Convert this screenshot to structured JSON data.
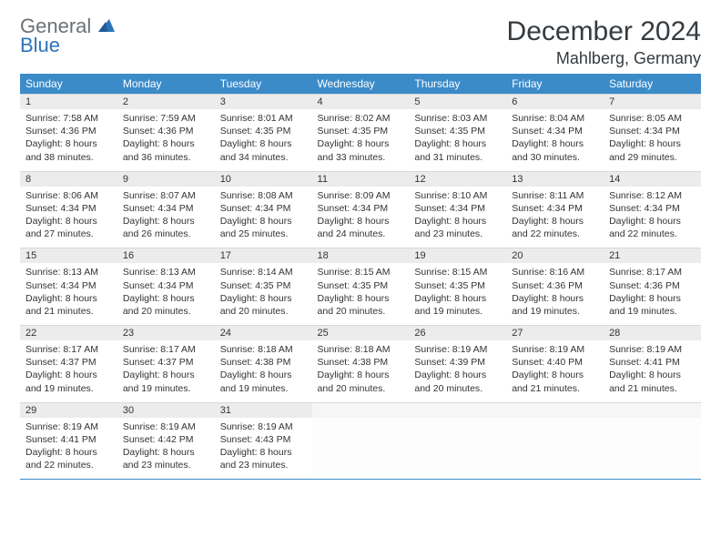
{
  "logo": {
    "general": "General",
    "blue": "Blue"
  },
  "title": "December 2024",
  "location": "Mahlberg, Germany",
  "weekdays": [
    "Sunday",
    "Monday",
    "Tuesday",
    "Wednesday",
    "Thursday",
    "Friday",
    "Saturday"
  ],
  "colors": {
    "header_bg": "#3b8bc9",
    "header_text": "#ffffff",
    "daynum_bg": "#ececec",
    "rule": "#3b8bc9",
    "logo_general": "#6b7176",
    "logo_blue": "#2b74b8",
    "body_text": "#333333",
    "title_text": "#353b40"
  },
  "weeks": [
    [
      {
        "n": "1",
        "sr": "Sunrise: 7:58 AM",
        "ss": "Sunset: 4:36 PM",
        "dl": "Daylight: 8 hours and 38 minutes."
      },
      {
        "n": "2",
        "sr": "Sunrise: 7:59 AM",
        "ss": "Sunset: 4:36 PM",
        "dl": "Daylight: 8 hours and 36 minutes."
      },
      {
        "n": "3",
        "sr": "Sunrise: 8:01 AM",
        "ss": "Sunset: 4:35 PM",
        "dl": "Daylight: 8 hours and 34 minutes."
      },
      {
        "n": "4",
        "sr": "Sunrise: 8:02 AM",
        "ss": "Sunset: 4:35 PM",
        "dl": "Daylight: 8 hours and 33 minutes."
      },
      {
        "n": "5",
        "sr": "Sunrise: 8:03 AM",
        "ss": "Sunset: 4:35 PM",
        "dl": "Daylight: 8 hours and 31 minutes."
      },
      {
        "n": "6",
        "sr": "Sunrise: 8:04 AM",
        "ss": "Sunset: 4:34 PM",
        "dl": "Daylight: 8 hours and 30 minutes."
      },
      {
        "n": "7",
        "sr": "Sunrise: 8:05 AM",
        "ss": "Sunset: 4:34 PM",
        "dl": "Daylight: 8 hours and 29 minutes."
      }
    ],
    [
      {
        "n": "8",
        "sr": "Sunrise: 8:06 AM",
        "ss": "Sunset: 4:34 PM",
        "dl": "Daylight: 8 hours and 27 minutes."
      },
      {
        "n": "9",
        "sr": "Sunrise: 8:07 AM",
        "ss": "Sunset: 4:34 PM",
        "dl": "Daylight: 8 hours and 26 minutes."
      },
      {
        "n": "10",
        "sr": "Sunrise: 8:08 AM",
        "ss": "Sunset: 4:34 PM",
        "dl": "Daylight: 8 hours and 25 minutes."
      },
      {
        "n": "11",
        "sr": "Sunrise: 8:09 AM",
        "ss": "Sunset: 4:34 PM",
        "dl": "Daylight: 8 hours and 24 minutes."
      },
      {
        "n": "12",
        "sr": "Sunrise: 8:10 AM",
        "ss": "Sunset: 4:34 PM",
        "dl": "Daylight: 8 hours and 23 minutes."
      },
      {
        "n": "13",
        "sr": "Sunrise: 8:11 AM",
        "ss": "Sunset: 4:34 PM",
        "dl": "Daylight: 8 hours and 22 minutes."
      },
      {
        "n": "14",
        "sr": "Sunrise: 8:12 AM",
        "ss": "Sunset: 4:34 PM",
        "dl": "Daylight: 8 hours and 22 minutes."
      }
    ],
    [
      {
        "n": "15",
        "sr": "Sunrise: 8:13 AM",
        "ss": "Sunset: 4:34 PM",
        "dl": "Daylight: 8 hours and 21 minutes."
      },
      {
        "n": "16",
        "sr": "Sunrise: 8:13 AM",
        "ss": "Sunset: 4:34 PM",
        "dl": "Daylight: 8 hours and 20 minutes."
      },
      {
        "n": "17",
        "sr": "Sunrise: 8:14 AM",
        "ss": "Sunset: 4:35 PM",
        "dl": "Daylight: 8 hours and 20 minutes."
      },
      {
        "n": "18",
        "sr": "Sunrise: 8:15 AM",
        "ss": "Sunset: 4:35 PM",
        "dl": "Daylight: 8 hours and 20 minutes."
      },
      {
        "n": "19",
        "sr": "Sunrise: 8:15 AM",
        "ss": "Sunset: 4:35 PM",
        "dl": "Daylight: 8 hours and 19 minutes."
      },
      {
        "n": "20",
        "sr": "Sunrise: 8:16 AM",
        "ss": "Sunset: 4:36 PM",
        "dl": "Daylight: 8 hours and 19 minutes."
      },
      {
        "n": "21",
        "sr": "Sunrise: 8:17 AM",
        "ss": "Sunset: 4:36 PM",
        "dl": "Daylight: 8 hours and 19 minutes."
      }
    ],
    [
      {
        "n": "22",
        "sr": "Sunrise: 8:17 AM",
        "ss": "Sunset: 4:37 PM",
        "dl": "Daylight: 8 hours and 19 minutes."
      },
      {
        "n": "23",
        "sr": "Sunrise: 8:17 AM",
        "ss": "Sunset: 4:37 PM",
        "dl": "Daylight: 8 hours and 19 minutes."
      },
      {
        "n": "24",
        "sr": "Sunrise: 8:18 AM",
        "ss": "Sunset: 4:38 PM",
        "dl": "Daylight: 8 hours and 19 minutes."
      },
      {
        "n": "25",
        "sr": "Sunrise: 8:18 AM",
        "ss": "Sunset: 4:38 PM",
        "dl": "Daylight: 8 hours and 20 minutes."
      },
      {
        "n": "26",
        "sr": "Sunrise: 8:19 AM",
        "ss": "Sunset: 4:39 PM",
        "dl": "Daylight: 8 hours and 20 minutes."
      },
      {
        "n": "27",
        "sr": "Sunrise: 8:19 AM",
        "ss": "Sunset: 4:40 PM",
        "dl": "Daylight: 8 hours and 21 minutes."
      },
      {
        "n": "28",
        "sr": "Sunrise: 8:19 AM",
        "ss": "Sunset: 4:41 PM",
        "dl": "Daylight: 8 hours and 21 minutes."
      }
    ],
    [
      {
        "n": "29",
        "sr": "Sunrise: 8:19 AM",
        "ss": "Sunset: 4:41 PM",
        "dl": "Daylight: 8 hours and 22 minutes."
      },
      {
        "n": "30",
        "sr": "Sunrise: 8:19 AM",
        "ss": "Sunset: 4:42 PM",
        "dl": "Daylight: 8 hours and 23 minutes."
      },
      {
        "n": "31",
        "sr": "Sunrise: 8:19 AM",
        "ss": "Sunset: 4:43 PM",
        "dl": "Daylight: 8 hours and 23 minutes."
      },
      null,
      null,
      null,
      null
    ]
  ]
}
